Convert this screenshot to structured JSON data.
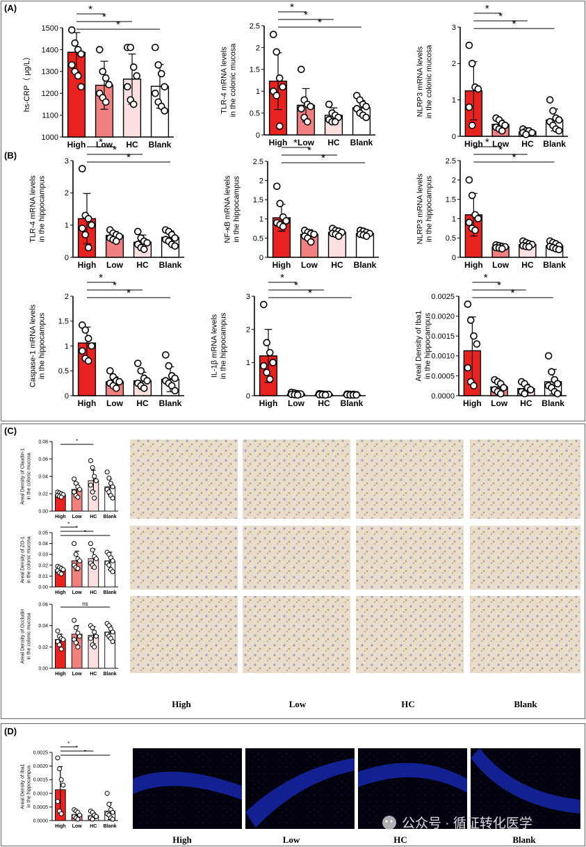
{
  "panel_labels": [
    "(A)",
    "(B)",
    "(C)",
    "(D)"
  ],
  "groups": [
    "High",
    "Low",
    "HC",
    "Blank"
  ],
  "colors": {
    "High": "#e8231f",
    "Low": "#f08080",
    "HC": "#fde0e0",
    "Blank": "#ffffff"
  },
  "micro_labels": [
    "High",
    "Low",
    "HC",
    "Blank"
  ],
  "watermark": "公众号 · 循证转化医学",
  "chart_data": [
    {
      "id": "A1",
      "type": "bar",
      "ylabel": "hs-CRP（ μg/L）",
      "categories": [
        "High",
        "Low",
        "HC",
        "Blank"
      ],
      "values": [
        1388,
        1237,
        1265,
        1232
      ],
      "errors": [
        90,
        110,
        115,
        100
      ],
      "ylim": [
        1000,
        1500
      ],
      "yticks": [
        1000,
        1100,
        1200,
        1300,
        1400,
        1500
      ],
      "points": [
        [
          1490,
          1430,
          1400,
          1380,
          1330,
          1300,
          1280,
          1230
        ],
        [
          1400,
          1300,
          1270,
          1240,
          1200,
          1180,
          1160
        ],
        [
          1410,
          1410,
          1320,
          1280,
          1230,
          1170,
          1150
        ],
        [
          1410,
          1330,
          1290,
          1230,
          1200,
          1160,
          1140,
          1120
        ]
      ],
      "significance": [
        {
          "from": "High",
          "to": "Low",
          "label": "*"
        },
        {
          "from": "High",
          "to": "HC",
          "label": "*"
        },
        {
          "from": "High",
          "to": "Blank",
          "label": "*"
        }
      ]
    },
    {
      "id": "A2",
      "type": "bar",
      "ylabel": "TLR-4 mRNA levels in the colonic mucosa",
      "categories": [
        "High",
        "Low",
        "HC",
        "Blank"
      ],
      "values": [
        1.23,
        0.68,
        0.45,
        0.62
      ],
      "errors": [
        0.65,
        0.38,
        0.17,
        0.17
      ],
      "ylim": [
        0,
        2.5
      ],
      "yticks": [
        0,
        0.5,
        1.0,
        1.5,
        2.0,
        2.5
      ],
      "points": [
        [
          2.3,
          1.9,
          1.3,
          1.1,
          1.0,
          0.9,
          0.2
        ],
        [
          1.5,
          0.8,
          0.7,
          0.65,
          0.6,
          0.4,
          0.3
        ],
        [
          0.7,
          0.5,
          0.45,
          0.4,
          0.35,
          0.3,
          0.3
        ],
        [
          0.9,
          0.8,
          0.7,
          0.65,
          0.6,
          0.5,
          0.45,
          0.4
        ]
      ],
      "significance": [
        {
          "from": "High",
          "to": "Low",
          "label": "*"
        },
        {
          "from": "High",
          "to": "HC",
          "label": "*"
        },
        {
          "from": "High",
          "to": "Blank",
          "label": "*"
        }
      ]
    },
    {
      "id": "A3",
      "type": "bar",
      "ylabel": "NLRP3 mRNA levels in the colonic mucosa",
      "categories": [
        "High",
        "Low",
        "HC",
        "Blank"
      ],
      "values": [
        1.25,
        0.33,
        0.13,
        0.45
      ],
      "errors": [
        0.8,
        0.12,
        0.07,
        0.3
      ],
      "ylim": [
        0,
        3
      ],
      "yticks": [
        0,
        1,
        2,
        3
      ],
      "points": [
        [
          2.5,
          2.0,
          1.35,
          1.3,
          0.8,
          0.3
        ],
        [
          0.5,
          0.45,
          0.35,
          0.3,
          0.25,
          0.2,
          0.15
        ],
        [
          0.2,
          0.15,
          0.15,
          0.1,
          0.1,
          0.05
        ],
        [
          1.0,
          0.7,
          0.5,
          0.45,
          0.4,
          0.3,
          0.2,
          0.15
        ]
      ],
      "significance": [
        {
          "from": "High",
          "to": "Low",
          "label": "*"
        },
        {
          "from": "High",
          "to": "HC",
          "label": "*"
        },
        {
          "from": "High",
          "to": "Blank",
          "label": "*"
        }
      ]
    },
    {
      "id": "B1",
      "type": "bar",
      "ylabel": "TLR-4 mRNA levels in the hippocampus",
      "categories": [
        "High",
        "Low",
        "HC",
        "Blank"
      ],
      "values": [
        1.2,
        0.68,
        0.47,
        0.62
      ],
      "errors": [
        0.78,
        0.12,
        0.22,
        0.2
      ],
      "ylim": [
        0,
        3
      ],
      "yticks": [
        0,
        1,
        2,
        3
      ],
      "points": [
        [
          2.75,
          1.3,
          1.2,
          1.0,
          0.9,
          0.7,
          0.3
        ],
        [
          0.85,
          0.75,
          0.7,
          0.65,
          0.6,
          0.55,
          0.5
        ],
        [
          0.8,
          0.6,
          0.5,
          0.45,
          0.4,
          0.3,
          0.25
        ],
        [
          0.85,
          0.8,
          0.7,
          0.6,
          0.55,
          0.5,
          0.4,
          0.35
        ]
      ],
      "significance": [
        {
          "from": "High",
          "to": "Low",
          "label": "*"
        },
        {
          "from": "High",
          "to": "HC",
          "label": "*"
        },
        {
          "from": "High",
          "to": "Blank",
          "label": "*"
        }
      ]
    },
    {
      "id": "B2",
      "type": "bar",
      "ylabel": "NF-κB mRNA levels in the hippocampus",
      "categories": [
        "High",
        "Low",
        "HC",
        "Blank"
      ],
      "values": [
        1.03,
        0.6,
        0.65,
        0.62
      ],
      "errors": [
        0.35,
        0.12,
        0.08,
        0.08
      ],
      "ylim": [
        0,
        2.5
      ],
      "yticks": [
        0,
        0.5,
        1.0,
        1.5,
        2.0,
        2.5
      ],
      "points": [
        [
          1.85,
          1.4,
          1.05,
          0.95,
          0.9,
          0.85,
          0.8
        ],
        [
          0.7,
          0.65,
          0.62,
          0.6,
          0.55,
          0.5,
          0.4
        ],
        [
          0.75,
          0.7,
          0.68,
          0.65,
          0.62,
          0.6,
          0.55
        ],
        [
          0.7,
          0.68,
          0.65,
          0.62,
          0.6,
          0.58,
          0.55
        ]
      ],
      "significance": [
        {
          "from": "High",
          "to": "Low",
          "label": "*"
        },
        {
          "from": "High",
          "to": "HC",
          "label": "*"
        },
        {
          "from": "High",
          "to": "Blank",
          "label": "*"
        }
      ]
    },
    {
      "id": "B3",
      "type": "bar",
      "ylabel": "NLRP3 mRNA levels in the hippocampus",
      "categories": [
        "High",
        "Low",
        "HC",
        "Blank"
      ],
      "values": [
        1.1,
        0.27,
        0.33,
        0.3
      ],
      "errors": [
        0.55,
        0.05,
        0.07,
        0.08
      ],
      "ylim": [
        0,
        2.5
      ],
      "yticks": [
        0,
        0.5,
        1.0,
        1.5,
        2.0,
        2.5
      ],
      "points": [
        [
          2.0,
          1.6,
          1.1,
          1.0,
          0.9,
          0.75,
          0.7
        ],
        [
          0.32,
          0.3,
          0.28,
          0.27,
          0.25,
          0.24,
          0.22
        ],
        [
          0.42,
          0.38,
          0.35,
          0.33,
          0.3,
          0.28,
          0.27
        ],
        [
          0.42,
          0.38,
          0.35,
          0.3,
          0.28,
          0.25,
          0.22,
          0.2
        ]
      ],
      "significance": [
        {
          "from": "High",
          "to": "Low",
          "label": "*"
        },
        {
          "from": "High",
          "to": "HC",
          "label": "*"
        },
        {
          "from": "High",
          "to": "Blank",
          "label": "*"
        }
      ]
    },
    {
      "id": "B4",
      "type": "bar",
      "ylabel": "Caspase-1 mRNA levels in the hippocampus",
      "categories": [
        "High",
        "Low",
        "HC",
        "Blank"
      ],
      "values": [
        1.06,
        0.28,
        0.3,
        0.33
      ],
      "errors": [
        0.32,
        0.1,
        0.17,
        0.25
      ],
      "ylim": [
        0,
        2.0
      ],
      "yticks": [
        0,
        0.5,
        1.0,
        1.5,
        2.0
      ],
      "points": [
        [
          1.42,
          1.32,
          1.15,
          1.0,
          0.9,
          0.75,
          0.7
        ],
        [
          0.5,
          0.38,
          0.3,
          0.28,
          0.25,
          0.2,
          0.15
        ],
        [
          0.65,
          0.5,
          0.35,
          0.3,
          0.25,
          0.2,
          0.15
        ],
        [
          0.82,
          0.6,
          0.4,
          0.35,
          0.3,
          0.25,
          0.2,
          0.1
        ]
      ],
      "significance": [
        {
          "from": "High",
          "to": "Low",
          "label": "*"
        },
        {
          "from": "High",
          "to": "HC",
          "label": "*"
        },
        {
          "from": "High",
          "to": "Blank",
          "label": "*"
        }
      ]
    },
    {
      "id": "B5",
      "type": "bar",
      "ylabel": "IL-1β mRNA levels in the hippocampus",
      "categories": [
        "High",
        "Low",
        "HC",
        "Blank"
      ],
      "values": [
        1.2,
        0.05,
        0.04,
        0.03
      ],
      "errors": [
        0.8,
        0.03,
        0.02,
        0.02
      ],
      "ylim": [
        0,
        3
      ],
      "yticks": [
        0,
        1,
        2,
        3
      ],
      "points": [
        [
          2.75,
          1.6,
          1.3,
          1.0,
          0.9,
          0.7,
          0.5
        ],
        [
          0.1,
          0.08,
          0.06,
          0.05,
          0.04,
          0.03,
          0.02
        ],
        [
          0.06,
          0.05,
          0.04,
          0.04,
          0.03,
          0.03,
          0.02
        ],
        [
          0.05,
          0.04,
          0.04,
          0.03,
          0.03,
          0.02,
          0.02,
          0.02
        ]
      ],
      "significance": [
        {
          "from": "High",
          "to": "Low",
          "label": "*"
        },
        {
          "from": "High",
          "to": "HC",
          "label": "*"
        },
        {
          "from": "High",
          "to": "Blank",
          "label": "*"
        }
      ]
    },
    {
      "id": "B6",
      "type": "bar",
      "ylabel": "Areal Density of Iba1 in the hippocampus",
      "categories": [
        "High",
        "Low",
        "HC",
        "Blank"
      ],
      "values": [
        0.00113,
        0.00022,
        0.00018,
        0.00035
      ],
      "errors": [
        0.00085,
        0.00011,
        0.00011,
        0.00031
      ],
      "ylim": [
        0,
        0.0025
      ],
      "yticks": [
        0,
        0.0005,
        0.001,
        0.0015,
        0.002,
        0.0025
      ],
      "tick_labels": [
        "0.0000",
        "0.0005",
        "0.0010",
        "0.0015",
        "0.0020",
        "0.0025"
      ],
      "points": [
        [
          0.0023,
          0.0019,
          0.0015,
          0.0013,
          0.0007,
          0.00035,
          0.00025
        ],
        [
          0.0004,
          0.00035,
          0.0003,
          0.0002,
          0.00015,
          0.0001,
          5e-05
        ],
        [
          0.00035,
          0.0003,
          0.0002,
          0.00015,
          0.0001,
          5e-05
        ],
        [
          0.001,
          0.0006,
          0.0004,
          0.0003,
          0.00025,
          0.0002,
          0.0001,
          5e-05
        ]
      ],
      "significance": [
        {
          "from": "High",
          "to": "Low",
          "label": "*"
        },
        {
          "from": "High",
          "to": "HC",
          "label": "*"
        },
        {
          "from": "High",
          "to": "Blank",
          "label": "*"
        }
      ]
    },
    {
      "id": "C1",
      "type": "bar",
      "ylabel": "Areal Density of Claudin-1 in the colonic mucosa",
      "categories": [
        "High",
        "Low",
        "HC",
        "Blank"
      ],
      "values": [
        0.019,
        0.025,
        0.035,
        0.028
      ],
      "errors": [
        0.003,
        0.007,
        0.012,
        0.009
      ],
      "ylim": [
        0,
        0.08
      ],
      "yticks": [
        0,
        0.02,
        0.04,
        0.06,
        0.08
      ],
      "tick_labels": [
        "0.00",
        "0.02",
        "0.04",
        "0.06",
        "0.08"
      ],
      "points": [
        [
          0.022,
          0.021,
          0.02,
          0.019,
          0.018,
          0.017,
          0.016
        ],
        [
          0.037,
          0.032,
          0.028,
          0.025,
          0.022,
          0.018,
          0.016
        ],
        [
          0.058,
          0.05,
          0.04,
          0.035,
          0.03,
          0.022,
          0.015
        ],
        [
          0.045,
          0.038,
          0.032,
          0.028,
          0.025,
          0.022,
          0.018,
          0.015
        ]
      ],
      "significance": [
        {
          "from": "High",
          "to": "HC",
          "label": "*"
        }
      ]
    },
    {
      "id": "C2",
      "type": "bar",
      "ylabel": "Areal Density of ZO-1 in the colonic mucosa",
      "categories": [
        "High",
        "Low",
        "HC",
        "Blank"
      ],
      "values": [
        0.016,
        0.024,
        0.026,
        0.024
      ],
      "errors": [
        0.003,
        0.009,
        0.009,
        0.008
      ],
      "ylim": [
        0,
        0.05
      ],
      "yticks": [
        0,
        0.01,
        0.02,
        0.03,
        0.04,
        0.05
      ],
      "tick_labels": [
        "0.00",
        "0.01",
        "0.02",
        "0.03",
        "0.04",
        "0.05"
      ],
      "points": [
        [
          0.019,
          0.018,
          0.017,
          0.016,
          0.015,
          0.013,
          0.012
        ],
        [
          0.04,
          0.03,
          0.026,
          0.024,
          0.02,
          0.018,
          0.017
        ],
        [
          0.04,
          0.034,
          0.028,
          0.026,
          0.022,
          0.02,
          0.018
        ],
        [
          0.032,
          0.03,
          0.027,
          0.024,
          0.022,
          0.02,
          0.016,
          0.014
        ]
      ],
      "significance": [
        {
          "from": "High",
          "to": "Low",
          "label": "*"
        },
        {
          "from": "High",
          "to": "HC",
          "label": "*"
        },
        {
          "from": "High",
          "to": "Blank",
          "label": "*"
        }
      ]
    },
    {
      "id": "C3",
      "type": "bar",
      "ylabel": "Areal Density of Occludin in the colonic mucosa",
      "categories": [
        "High",
        "Low",
        "HC",
        "Blank"
      ],
      "values": [
        0.027,
        0.032,
        0.031,
        0.034
      ],
      "errors": [
        0.005,
        0.008,
        0.008,
        0.006
      ],
      "ylim": [
        0,
        0.06
      ],
      "yticks": [
        0,
        0.02,
        0.04,
        0.06
      ],
      "tick_labels": [
        "0.00",
        "0.02",
        "0.04",
        "0.06"
      ],
      "points": [
        [
          0.035,
          0.03,
          0.028,
          0.027,
          0.025,
          0.022,
          0.018
        ],
        [
          0.045,
          0.038,
          0.033,
          0.03,
          0.027,
          0.024,
          0.02
        ],
        [
          0.04,
          0.038,
          0.034,
          0.03,
          0.028,
          0.022,
          0.02
        ],
        [
          0.042,
          0.04,
          0.037,
          0.034,
          0.032,
          0.03,
          0.028,
          0.025
        ]
      ],
      "significance": [
        {
          "from": "High",
          "to": "Blank",
          "label": "ns"
        }
      ]
    },
    {
      "id": "D1",
      "type": "bar",
      "ylabel": "Areal Density of Iba1 in the hippocampus",
      "categories": [
        "High",
        "Low",
        "HC",
        "Blank"
      ],
      "values": [
        0.00113,
        0.00022,
        0.00018,
        0.00035
      ],
      "errors": [
        0.00085,
        0.00011,
        0.00011,
        0.00031
      ],
      "ylim": [
        0,
        0.0025
      ],
      "yticks": [
        0,
        0.0005,
        0.001,
        0.0015,
        0.002,
        0.0025
      ],
      "tick_labels": [
        "0.0000",
        "0.0005",
        "0.0010",
        "0.0015",
        "0.0020",
        "0.0025"
      ],
      "points": [
        [
          0.0023,
          0.0019,
          0.0015,
          0.0013,
          0.0007,
          0.00035,
          0.00025
        ],
        [
          0.0004,
          0.00035,
          0.0003,
          0.0002,
          0.00015,
          0.0001,
          5e-05
        ],
        [
          0.00035,
          0.0003,
          0.0002,
          0.00015,
          0.0001,
          5e-05
        ],
        [
          0.001,
          0.0006,
          0.0004,
          0.0003,
          0.00025,
          0.0002,
          0.0001,
          5e-05
        ]
      ],
      "significance": [
        {
          "from": "High",
          "to": "Low",
          "label": "*"
        },
        {
          "from": "High",
          "to": "HC",
          "label": "*"
        },
        {
          "from": "High",
          "to": "Blank",
          "label": "*"
        }
      ]
    }
  ]
}
